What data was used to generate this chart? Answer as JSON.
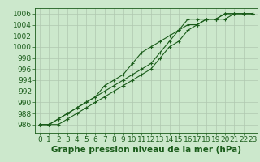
{
  "xlabel": "Graphe pression niveau de la mer (hPa)",
  "background_color": "#cce8cc",
  "grid_color": "#b0c8b0",
  "line_color": "#1a5c1a",
  "x": [
    0,
    1,
    2,
    3,
    4,
    5,
    6,
    7,
    8,
    9,
    10,
    11,
    12,
    13,
    14,
    15,
    16,
    17,
    18,
    19,
    20,
    21,
    22,
    23
  ],
  "series1": [
    986,
    986,
    987,
    988,
    989,
    990,
    991,
    993,
    994,
    995,
    997,
    999,
    1000,
    1001,
    1002,
    1003,
    1004,
    1004,
    1005,
    1005,
    1005,
    1006,
    1006,
    1006
  ],
  "series2": [
    986,
    986,
    986,
    987,
    988,
    989,
    990,
    991,
    992,
    993,
    994,
    995,
    996,
    998,
    1000,
    1001,
    1003,
    1004,
    1005,
    1005,
    1006,
    1006,
    1006,
    1006
  ],
  "series3": [
    986,
    986,
    987,
    988,
    989,
    990,
    991,
    992,
    993,
    994,
    995,
    996,
    997,
    999,
    1001,
    1003,
    1005,
    1005,
    1005,
    1005,
    1006,
    1006,
    1006,
    1006
  ],
  "ylim": [
    984.5,
    1007
  ],
  "yticks": [
    986,
    988,
    990,
    992,
    994,
    996,
    998,
    1000,
    1002,
    1004,
    1006
  ],
  "xticks": [
    0,
    1,
    2,
    3,
    4,
    5,
    6,
    7,
    8,
    9,
    10,
    11,
    12,
    13,
    14,
    15,
    16,
    17,
    18,
    19,
    20,
    21,
    22,
    23
  ],
  "marker": "+",
  "marker_size": 3.5,
  "line_width": 0.8,
  "tick_fontsize": 6.5,
  "xlabel_fontsize": 7.5,
  "xlabel_fontweight": "bold"
}
